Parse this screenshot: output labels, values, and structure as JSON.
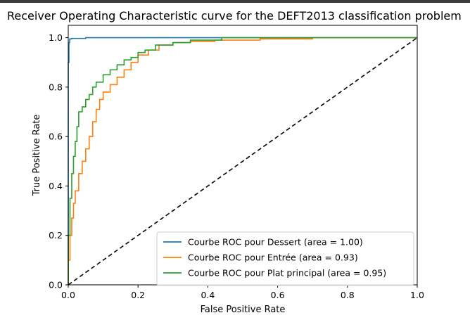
{
  "chart_data": {
    "type": "line",
    "title": "Receiver Operating Characteristic curve for the DEFT2013 classification problem",
    "xlabel": "False Positive Rate",
    "ylabel": "True Positive Rate",
    "xlim": [
      0,
      1.0
    ],
    "ylim": [
      0,
      1.05
    ],
    "xticks": [
      "0.0",
      "0.2",
      "0.4",
      "0.6",
      "0.8",
      "1.0"
    ],
    "yticks": [
      "0.0",
      "0.2",
      "0.4",
      "0.6",
      "0.8",
      "1.0"
    ],
    "legend_position": "lower-right",
    "grid": false,
    "series": [
      {
        "name": "Courbe ROC pour Dessert (area = 1.00)",
        "color": "#1f77b4",
        "x": [
          0.0,
          0.0,
          0.002,
          0.002,
          0.004,
          0.004,
          0.01,
          0.01,
          0.05,
          0.05,
          0.2,
          0.2,
          1.0
        ],
        "y": [
          0.0,
          0.9,
          0.9,
          0.98,
          0.98,
          0.995,
          0.995,
          0.997,
          0.997,
          1.0,
          1.0,
          1.0,
          1.0
        ]
      },
      {
        "name": "Courbe ROC pour Entrée (area = 0.93)",
        "color": "#ff7f0e",
        "x": [
          0.0,
          0.0,
          0.005,
          0.005,
          0.01,
          0.01,
          0.015,
          0.015,
          0.02,
          0.02,
          0.03,
          0.03,
          0.04,
          0.04,
          0.05,
          0.05,
          0.06,
          0.06,
          0.07,
          0.07,
          0.08,
          0.08,
          0.09,
          0.09,
          0.1,
          0.1,
          0.12,
          0.12,
          0.14,
          0.14,
          0.16,
          0.16,
          0.18,
          0.18,
          0.2,
          0.2,
          0.23,
          0.23,
          0.26,
          0.26,
          0.3,
          0.3,
          0.35,
          0.35,
          0.42,
          0.42,
          0.55,
          0.55,
          0.7,
          0.7,
          1.0
        ],
        "y": [
          0.0,
          0.1,
          0.1,
          0.2,
          0.2,
          0.27,
          0.27,
          0.33,
          0.33,
          0.38,
          0.38,
          0.45,
          0.45,
          0.5,
          0.5,
          0.55,
          0.55,
          0.6,
          0.6,
          0.66,
          0.66,
          0.71,
          0.71,
          0.75,
          0.75,
          0.78,
          0.78,
          0.81,
          0.81,
          0.84,
          0.84,
          0.87,
          0.87,
          0.9,
          0.9,
          0.93,
          0.93,
          0.95,
          0.95,
          0.97,
          0.97,
          0.98,
          0.98,
          0.985,
          0.985,
          0.99,
          0.99,
          0.995,
          0.995,
          1.0,
          1.0
        ]
      },
      {
        "name": "Courbe ROC pour Plat principal (area = 0.95)",
        "color": "#2ca02c",
        "x": [
          0.0,
          0.0,
          0.005,
          0.005,
          0.01,
          0.01,
          0.015,
          0.015,
          0.02,
          0.02,
          0.025,
          0.025,
          0.03,
          0.03,
          0.04,
          0.04,
          0.05,
          0.05,
          0.06,
          0.06,
          0.07,
          0.07,
          0.08,
          0.08,
          0.1,
          0.1,
          0.12,
          0.12,
          0.14,
          0.14,
          0.16,
          0.16,
          0.18,
          0.18,
          0.2,
          0.2,
          0.22,
          0.22,
          0.25,
          0.25,
          0.3,
          0.3,
          0.35,
          0.35,
          0.44,
          0.44,
          1.0
        ],
        "y": [
          0.0,
          0.2,
          0.2,
          0.35,
          0.35,
          0.45,
          0.45,
          0.52,
          0.52,
          0.58,
          0.58,
          0.64,
          0.64,
          0.7,
          0.7,
          0.72,
          0.72,
          0.75,
          0.75,
          0.77,
          0.77,
          0.8,
          0.8,
          0.82,
          0.82,
          0.85,
          0.85,
          0.87,
          0.87,
          0.89,
          0.89,
          0.91,
          0.91,
          0.92,
          0.92,
          0.94,
          0.94,
          0.95,
          0.95,
          0.97,
          0.97,
          0.98,
          0.98,
          0.99,
          0.99,
          1.0,
          1.0
        ]
      },
      {
        "name": "",
        "color": "#000000",
        "dashed": true,
        "x": [
          0.0,
          1.0
        ],
        "y": [
          0.0,
          1.0
        ]
      }
    ]
  }
}
